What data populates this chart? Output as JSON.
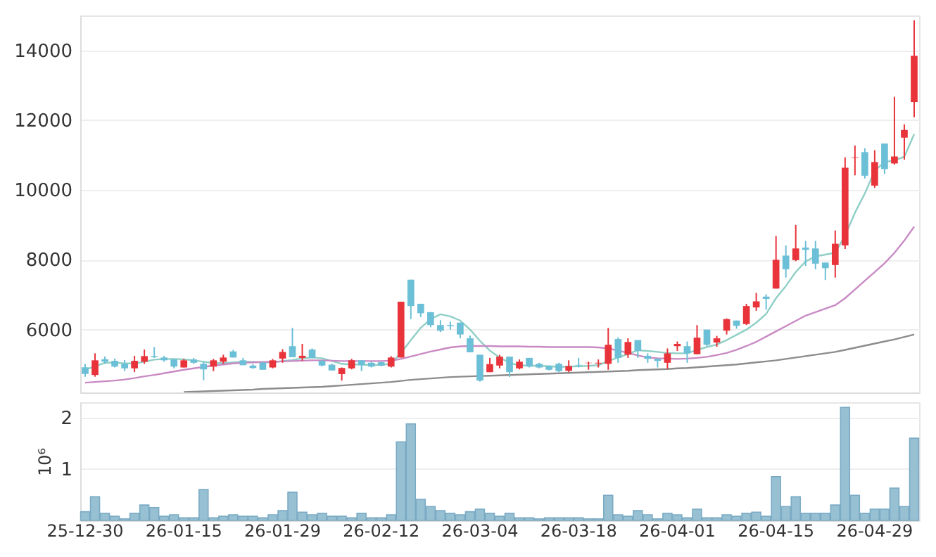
{
  "chart_data": [
    {
      "type": "candlestick",
      "categories": [
        null,
        null,
        null,
        null,
        null,
        null,
        null,
        null,
        null,
        null,
        null,
        null,
        null,
        null,
        null,
        null,
        null,
        null,
        null,
        null,
        null,
        null,
        null,
        null,
        null,
        null,
        null,
        null,
        null,
        null,
        null,
        null,
        null,
        null,
        null,
        null,
        null,
        null,
        null,
        null,
        null,
        null,
        null,
        null,
        null,
        null,
        null,
        null,
        null,
        null,
        null,
        null,
        null,
        null,
        null,
        null,
        null,
        null,
        null,
        null,
        null,
        null,
        null,
        null,
        null,
        null,
        null,
        null,
        null,
        null,
        null,
        null,
        null,
        null,
        null,
        null,
        null,
        null,
        null,
        null,
        null,
        null,
        null,
        null,
        null
      ],
      "ohlc": [
        [
          4920,
          5020,
          4650,
          4730
        ],
        [
          4700,
          5320,
          4650,
          5120
        ],
        [
          5150,
          5230,
          5020,
          5080
        ],
        [
          5105,
          5170,
          4915,
          4940
        ],
        [
          5020,
          5130,
          4810,
          4890
        ],
        [
          4890,
          5250,
          4780,
          5105
        ],
        [
          5080,
          5430,
          5020,
          5240
        ],
        [
          5240,
          5500,
          5190,
          5210
        ],
        [
          5200,
          5250,
          5080,
          5120
        ],
        [
          5145,
          5145,
          4890,
          4940
        ],
        [
          4915,
          5160,
          4915,
          5120
        ],
        [
          5145,
          5190,
          5020,
          5050
        ],
        [
          5020,
          5080,
          4550,
          4860
        ],
        [
          4940,
          5160,
          4810,
          5120
        ],
        [
          5080,
          5280,
          5020,
          5200
        ],
        [
          5375,
          5420,
          5200,
          5200
        ],
        [
          5120,
          5190,
          4980,
          4980
        ],
        [
          4970,
          5010,
          4875,
          4900
        ],
        [
          5050,
          5080,
          4850,
          4850
        ],
        [
          4915,
          5160,
          4890,
          5120
        ],
        [
          5170,
          5440,
          5050,
          5360
        ],
        [
          5525,
          6050,
          5210,
          5210
        ],
        [
          5190,
          5590,
          5105,
          5250
        ],
        [
          5430,
          5460,
          5190,
          5190
        ],
        [
          5105,
          5130,
          4950,
          4970
        ],
        [
          4995,
          5020,
          4830,
          4830
        ],
        [
          4725,
          4915,
          4540,
          4900
        ],
        [
          4890,
          5160,
          4860,
          5120
        ],
        [
          5120,
          5120,
          4810,
          4980
        ],
        [
          5050,
          5080,
          4915,
          4940
        ],
        [
          5065,
          5080,
          4950,
          4970
        ],
        [
          4940,
          5240,
          4915,
          5200
        ],
        [
          5200,
          6800,
          5200,
          6800
        ],
        [
          7430,
          7430,
          6300,
          6675
        ],
        [
          6740,
          6740,
          6360,
          6470
        ],
        [
          6500,
          6500,
          6065,
          6130
        ],
        [
          6130,
          6270,
          5930,
          5970
        ],
        [
          6130,
          6230,
          6000,
          6100
        ],
        [
          6200,
          6200,
          5750,
          5860
        ],
        [
          5750,
          5830,
          5350,
          5350
        ],
        [
          5280,
          5280,
          4510,
          4540
        ],
        [
          4780,
          5190,
          4780,
          5010
        ],
        [
          4970,
          5280,
          4890,
          5225
        ],
        [
          5225,
          5225,
          4645,
          4780
        ],
        [
          4890,
          5145,
          4860,
          5080
        ],
        [
          5190,
          5190,
          4915,
          4940
        ],
        [
          5020,
          5050,
          4890,
          4915
        ],
        [
          4955,
          4970,
          4830,
          4850
        ],
        [
          5020,
          5050,
          4780,
          4810
        ],
        [
          4820,
          5120,
          4780,
          4955
        ],
        [
          4990,
          5190,
          4915,
          4975
        ],
        [
          5040,
          5080,
          4850,
          5050
        ],
        [
          5030,
          5145,
          4915,
          5050
        ],
        [
          5020,
          6050,
          4850,
          5565
        ],
        [
          5730,
          5780,
          5050,
          5190
        ],
        [
          5280,
          5750,
          5190,
          5645
        ],
        [
          5700,
          5700,
          5190,
          5390
        ],
        [
          5250,
          5320,
          5050,
          5160
        ],
        [
          5160,
          5185,
          4915,
          5105
        ],
        [
          5050,
          5460,
          4875,
          5320
        ],
        [
          5525,
          5660,
          5390,
          5590
        ],
        [
          5525,
          5660,
          5050,
          5320
        ],
        [
          5295,
          6130,
          5295,
          5770
        ],
        [
          6000,
          6000,
          5525,
          5565
        ],
        [
          5630,
          5820,
          5510,
          5750
        ],
        [
          5970,
          6320,
          5860,
          6300
        ],
        [
          6260,
          6260,
          6025,
          6110
        ],
        [
          6160,
          6740,
          6130,
          6675
        ],
        [
          6635,
          7050,
          6540,
          6810
        ],
        [
          6945,
          7010,
          6570,
          6880
        ],
        [
          7175,
          8680,
          7175,
          8000
        ],
        [
          8120,
          8410,
          7490,
          7730
        ],
        [
          7990,
          9000,
          7960,
          8325
        ],
        [
          8350,
          8540,
          7825,
          8285
        ],
        [
          8325,
          8540,
          7730,
          7890
        ],
        [
          7920,
          7920,
          7420,
          7760
        ],
        [
          7850,
          8840,
          7490,
          8460
        ],
        [
          8410,
          10935,
          8310,
          10640
        ],
        [
          10920,
          11275,
          10420,
          10935
        ],
        [
          11085,
          11195,
          10330,
          10410
        ],
        [
          10125,
          11140,
          10060,
          10800
        ],
        [
          11330,
          11330,
          10460,
          10600
        ],
        [
          10760,
          12670,
          10730,
          10960
        ],
        [
          11500,
          11880,
          10870,
          11720
        ],
        [
          12520,
          14860,
          12085,
          13845
        ]
      ],
      "colors": [
        "#6bbfd6",
        "#e8333a",
        "#6bbfd6",
        "#6bbfd6",
        "#6bbfd6",
        "#e8333a",
        "#e8333a",
        "#6bbfd6",
        "#6bbfd6",
        "#6bbfd6",
        "#e8333a",
        "#6bbfd6",
        "#6bbfd6",
        "#e8333a",
        "#e8333a",
        "#6bbfd6",
        "#6bbfd6",
        "#6bbfd6",
        "#6bbfd6",
        "#e8333a",
        "#e8333a",
        "#6bbfd6",
        "#e8333a",
        "#6bbfd6",
        "#6bbfd6",
        "#6bbfd6",
        "#e8333a",
        "#e8333a",
        "#6bbfd6",
        "#6bbfd6",
        "#6bbfd6",
        "#e8333a",
        "#e8333a",
        "#6bbfd6",
        "#6bbfd6",
        "#6bbfd6",
        "#6bbfd6",
        "#6bbfd6",
        "#6bbfd6",
        "#6bbfd6",
        "#6bbfd6",
        "#e8333a",
        "#e8333a",
        "#6bbfd6",
        "#e8333a",
        "#6bbfd6",
        "#6bbfd6",
        "#6bbfd6",
        "#6bbfd6",
        "#e8333a",
        "#6bbfd6",
        "#e8333a",
        "#e8333a",
        "#e8333a",
        "#6bbfd6",
        "#e8333a",
        "#6bbfd6",
        "#6bbfd6",
        "#6bbfd6",
        "#e8333a",
        "#e8333a",
        "#6bbfd6",
        "#e8333a",
        "#6bbfd6",
        "#e8333a",
        "#e8333a",
        "#6bbfd6",
        "#e8333a",
        "#e8333a",
        "#6bbfd6",
        "#e8333a",
        "#6bbfd6",
        "#e8333a",
        "#6bbfd6",
        "#6bbfd6",
        "#6bbfd6",
        "#e8333a",
        "#e8333a",
        "#e8333a",
        "#6bbfd6",
        "#e8333a",
        "#6bbfd6",
        "#e8333a",
        "#e8333a",
        "#e8333a"
      ],
      "series": [
        {
          "type": "line",
          "color": "#8fcfc6",
          "values": [
            4850,
            4950,
            5050,
            5050,
            5030,
            5030,
            5080,
            5140,
            5160,
            5160,
            5150,
            5120,
            5080,
            5040,
            5040,
            5060,
            5080,
            5080,
            5060,
            5060,
            5100,
            5130,
            5180,
            5200,
            5180,
            5100,
            5020,
            5000,
            5000,
            4980,
            4990,
            5020,
            5330,
            5700,
            6050,
            6300,
            6440,
            6380,
            6260,
            6000,
            5680,
            5400,
            5200,
            5050,
            4970,
            4970,
            4960,
            4950,
            4930,
            4940,
            4950,
            4960,
            4980,
            5100,
            5200,
            5300,
            5410,
            5390,
            5360,
            5330,
            5320,
            5320,
            5420,
            5500,
            5570,
            5700,
            5850,
            6000,
            6200,
            6450,
            6900,
            7250,
            7650,
            7950,
            8100,
            8150,
            8200,
            8700,
            9350,
            9900,
            10550,
            10800,
            10850,
            10950,
            11600
          ]
        },
        {
          "type": "line",
          "color": "#c98ac4",
          "values": [
            4480,
            4500,
            4520,
            4540,
            4570,
            4610,
            4660,
            4700,
            4750,
            4800,
            4850,
            4890,
            4930,
            4970,
            5000,
            5030,
            5050,
            5060,
            5070,
            5080,
            5090,
            5100,
            5110,
            5120,
            5120,
            5110,
            5100,
            5100,
            5100,
            5100,
            5100,
            5110,
            5160,
            5230,
            5300,
            5370,
            5430,
            5490,
            5520,
            5530,
            5530,
            5530,
            5520,
            5520,
            5520,
            5510,
            5510,
            5500,
            5500,
            5500,
            5500,
            5500,
            5490,
            5460,
            5400,
            5330,
            5260,
            5200,
            5180,
            5170,
            5160,
            5170,
            5190,
            5220,
            5270,
            5330,
            5420,
            5530,
            5650,
            5800,
            5950,
            6100,
            6250,
            6400,
            6500,
            6600,
            6700,
            6900,
            7150,
            7400,
            7650,
            7900,
            8200,
            8550,
            8950
          ]
        },
        {
          "type": "line",
          "color": "#8c8c8c",
          "values": [
            null,
            null,
            null,
            null,
            null,
            null,
            null,
            null,
            null,
            null,
            4210,
            4220,
            4230,
            4240,
            4250,
            4260,
            4270,
            4280,
            4300,
            4310,
            4320,
            4330,
            4340,
            4350,
            4360,
            4380,
            4400,
            4420,
            4440,
            4460,
            4480,
            4500,
            4530,
            4560,
            4580,
            4600,
            4620,
            4640,
            4650,
            4660,
            4670,
            4680,
            4690,
            4700,
            4710,
            4720,
            4730,
            4740,
            4750,
            4760,
            4770,
            4780,
            4790,
            4800,
            4810,
            4820,
            4840,
            4850,
            4860,
            4870,
            4890,
            4900,
            4920,
            4940,
            4960,
            4980,
            5000,
            5030,
            5060,
            5090,
            5120,
            5160,
            5200,
            5240,
            5280,
            5320,
            5360,
            5420,
            5480,
            5540,
            5600,
            5660,
            5720,
            5790,
            5860
          ]
        }
      ],
      "ylim": [
        4200,
        15000
      ],
      "yticks": [
        6000,
        8000,
        10000,
        12000,
        14000
      ],
      "grid": "y",
      "tick_labels": "y"
    },
    {
      "type": "bar",
      "categories": [
        "25-12-30",
        null,
        null,
        null,
        null,
        null,
        null,
        null,
        null,
        null,
        "26-01-15",
        null,
        null,
        null,
        null,
        null,
        null,
        null,
        null,
        null,
        "26-01-29",
        null,
        null,
        null,
        null,
        null,
        null,
        null,
        null,
        null,
        "26-02-12",
        null,
        null,
        null,
        null,
        null,
        null,
        null,
        null,
        null,
        "26-03-04",
        null,
        null,
        null,
        null,
        null,
        null,
        null,
        null,
        null,
        "26-03-18",
        null,
        null,
        null,
        null,
        null,
        null,
        null,
        null,
        null,
        "26-04-01",
        null,
        null,
        null,
        null,
        null,
        null,
        null,
        null,
        null,
        "26-04-15",
        null,
        null,
        null,
        null,
        null,
        null,
        null,
        null,
        null,
        "26-04-29",
        null,
        null,
        null,
        null
      ],
      "values": [
        0.17,
        0.46,
        0.14,
        0.08,
        0.03,
        0.14,
        0.3,
        0.25,
        0.08,
        0.11,
        0.05,
        0.05,
        0.6,
        0.05,
        0.08,
        0.11,
        0.08,
        0.08,
        0.05,
        0.11,
        0.19,
        0.55,
        0.16,
        0.11,
        0.14,
        0.08,
        0.08,
        0.05,
        0.14,
        0.05,
        0.05,
        0.11,
        1.53,
        1.88,
        0.41,
        0.27,
        0.19,
        0.14,
        0.11,
        0.17,
        0.22,
        0.14,
        0.08,
        0.14,
        0.05,
        0.05,
        0.03,
        0.05,
        0.05,
        0.05,
        0.05,
        0.03,
        0.03,
        0.49,
        0.11,
        0.08,
        0.19,
        0.11,
        0.03,
        0.14,
        0.11,
        0.05,
        0.22,
        0.05,
        0.05,
        0.11,
        0.08,
        0.14,
        0.16,
        0.08,
        0.85,
        0.27,
        0.46,
        0.14,
        0.14,
        0.14,
        0.3,
        2.2,
        0.49,
        0.14,
        0.22,
        0.22,
        0.63,
        0.27,
        1.6
      ],
      "color": "#97c0d3",
      "ylabel": "10⁶",
      "ylim": [
        0,
        2.3
      ],
      "yticks": [
        1,
        2
      ],
      "grid": "y"
    }
  ]
}
